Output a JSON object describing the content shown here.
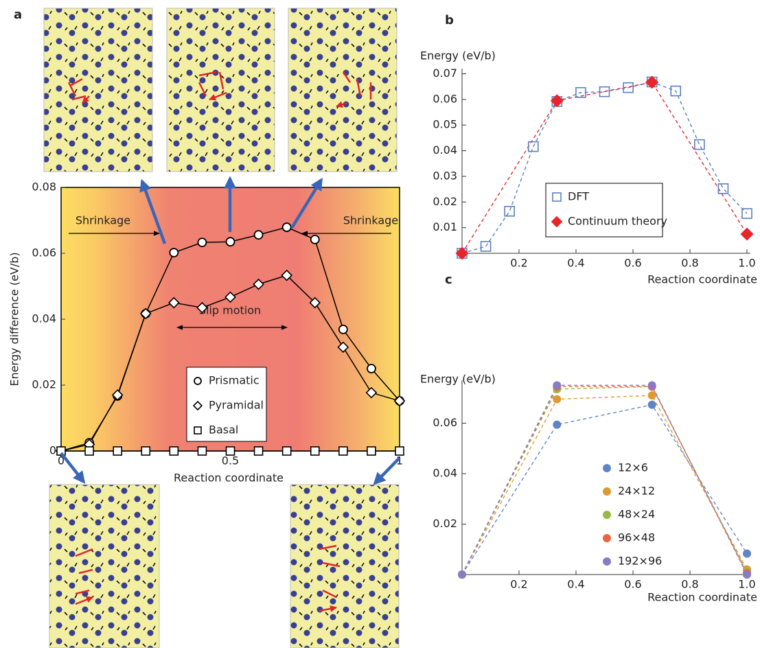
{
  "chart_data": [
    {
      "type": "line",
      "panel": "a",
      "x_label": "Reaction coordinate",
      "y_label": "Energy difference (eV/b)",
      "x": [
        0,
        0.0833,
        0.1667,
        0.25,
        0.3333,
        0.4167,
        0.5,
        0.5833,
        0.6667,
        0.75,
        0.8333,
        0.9167,
        1
      ],
      "series": [
        {
          "name": "Prismatic",
          "color": "#000000",
          "marker": "circle",
          "values": [
            0,
            0.0025,
            0.0167,
            0.0417,
            0.0602,
            0.0633,
            0.0635,
            0.0656,
            0.0679,
            0.0642,
            0.0369,
            0.025,
            0.0152
          ]
        },
        {
          "name": "Pyramidal",
          "color": "#000000",
          "marker": "diamond",
          "values": [
            0,
            0.002,
            0.017,
            0.0417,
            0.045,
            0.0435,
            0.0467,
            0.0506,
            0.0533,
            0.045,
            0.0315,
            0.0177,
            0.0152
          ]
        },
        {
          "name": "Basal",
          "color": "#000000",
          "marker": "square",
          "values": [
            0,
            0,
            0,
            0,
            0,
            0,
            0,
            0,
            0,
            0,
            0,
            0,
            0
          ]
        }
      ],
      "xlim": [
        0,
        1
      ],
      "xticks": [
        0,
        0.5,
        1
      ],
      "ylim": [
        0,
        0.08
      ],
      "yticks": [
        0,
        0.02,
        0.04,
        0.06,
        0.08
      ],
      "annotations": [
        "Shrinkage",
        "Shrinkage",
        "Slip motion"
      ]
    },
    {
      "type": "line",
      "panel": "b",
      "x_label": "Reaction coordinate",
      "y_label": "Energy (eV/b)",
      "series": [
        {
          "name": "DFT",
          "color": "#5a7fc0",
          "marker": "square",
          "x": [
            0,
            0.0833,
            0.1667,
            0.25,
            0.3333,
            0.4167,
            0.5,
            0.5833,
            0.6667,
            0.75,
            0.8333,
            0.9167,
            1
          ],
          "values": [
            0,
            0.0027,
            0.0164,
            0.0416,
            0.0592,
            0.0627,
            0.063,
            0.0646,
            0.0668,
            0.0633,
            0.0424,
            0.0252,
            0.0155
          ]
        },
        {
          "name": "Continuum theory",
          "color": "#e8262a",
          "marker": "diamond",
          "x": [
            0,
            0.3333,
            0.6667,
            1
          ],
          "values": [
            0,
            0.0595,
            0.0667,
            0.0075
          ]
        }
      ],
      "xlim": [
        0,
        1
      ],
      "xticks": [
        0.2,
        0.4,
        0.6,
        0.8,
        {
          "value": 1,
          "label": "1.0"
        }
      ],
      "ylim": [
        0,
        0.072
      ],
      "yticks": [
        0.01,
        0.02,
        0.03,
        0.04,
        0.05,
        0.06,
        0.07
      ]
    },
    {
      "type": "line",
      "panel": "c",
      "x_label": "Reaction coordinate",
      "y_label": "Energy (eV/b)",
      "x": [
        0,
        0.3333,
        0.6667,
        1
      ],
      "series": [
        {
          "name": "12×6",
          "color": "#5f86c4",
          "marker": "dot",
          "values": [
            0,
            0.0594,
            0.0673,
            0.0083
          ]
        },
        {
          "name": "24×12",
          "color": "#dd9a30",
          "marker": "dot",
          "values": [
            0,
            0.0695,
            0.071,
            0.002
          ]
        },
        {
          "name": "48×24",
          "color": "#98b84a",
          "marker": "dot",
          "values": [
            0,
            0.0735,
            0.0745,
            0.001
          ]
        },
        {
          "name": "96×48",
          "color": "#e8673d",
          "marker": "dot",
          "values": [
            0,
            0.0745,
            0.0745,
            0.0005
          ]
        },
        {
          "name": "192×96",
          "color": "#8a7cc2",
          "marker": "dot",
          "values": [
            0,
            0.075,
            0.075,
            0
          ]
        }
      ],
      "xlim": [
        0,
        1
      ],
      "xticks": [
        0.2,
        0.4,
        0.6,
        0.8,
        {
          "value": 1,
          "label": "1.0"
        }
      ],
      "ylim": [
        0,
        0.077
      ],
      "yticks": [
        0.02,
        0.04,
        0.06
      ]
    }
  ]
}
